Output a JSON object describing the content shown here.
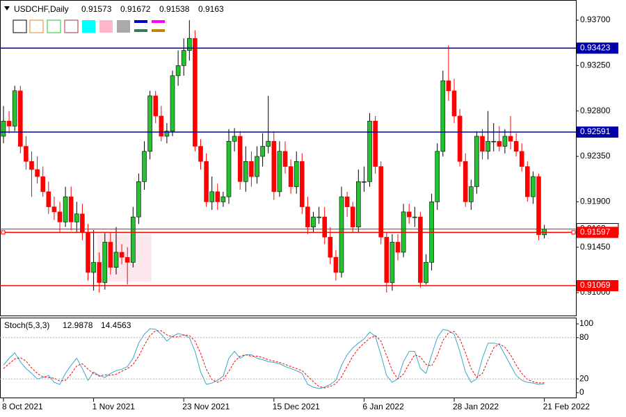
{
  "chart_data": {
    "type": "candlestick",
    "symbol": "USDCHF,Daily",
    "up_color": "#22c32e",
    "down_color": "#ff0000",
    "categories": [
      "8 Oct 2021",
      null,
      null,
      null,
      null,
      null,
      null,
      null,
      null,
      null,
      null,
      null,
      null,
      null,
      null,
      null,
      "1 Nov 2021",
      null,
      null,
      null,
      null,
      null,
      null,
      null,
      null,
      null,
      null,
      null,
      null,
      null,
      null,
      null,
      "23 Nov 2021",
      null,
      null,
      null,
      null,
      null,
      null,
      null,
      null,
      null,
      null,
      null,
      null,
      null,
      null,
      null,
      "15 Dec 2021",
      null,
      null,
      null,
      null,
      null,
      null,
      null,
      null,
      null,
      null,
      null,
      null,
      null,
      null,
      null,
      "6 Jan 2022",
      null,
      null,
      null,
      null,
      null,
      null,
      null,
      null,
      null,
      null,
      null,
      null,
      null,
      null,
      null,
      "28 Jan 2022",
      null,
      null,
      null,
      null,
      null,
      null,
      null,
      null,
      null,
      null,
      null,
      null,
      null,
      null,
      null,
      "21 Feb 2022"
    ],
    "open": [
      0.9255,
      0.927,
      0.9265,
      0.93,
      0.9245,
      0.923,
      0.9222,
      0.9215,
      0.92,
      0.9185,
      0.918,
      0.917,
      0.9195,
      0.917,
      0.9178,
      0.916,
      0.912,
      0.913,
      0.911,
      0.915,
      0.9125,
      0.914,
      0.9135,
      0.913,
      0.9175,
      0.921,
      0.924,
      0.9295,
      0.9275,
      0.9255,
      0.926,
      0.9315,
      0.9325,
      0.934,
      0.9352,
      0.9245,
      0.923,
      0.919,
      0.92,
      0.919,
      0.9195,
      0.925,
      0.9255,
      0.921,
      0.923,
      0.9215,
      0.9235,
      0.9245,
      0.925,
      0.92,
      0.924,
      0.9225,
      0.9205,
      0.923,
      0.9185,
      0.9165,
      0.9175,
      0.9175,
      0.9155,
      0.9135,
      0.912,
      0.9195,
      0.9185,
      0.9165,
      0.921,
      0.921,
      0.927,
      0.9225,
      0.9155,
      0.911,
      0.915,
      0.914,
      0.918,
      0.9175,
      0.9175,
      0.911,
      0.913,
      0.919,
      0.924,
      0.931,
      0.93,
      0.9275,
      0.923,
      0.919,
      0.9205,
      0.9255,
      0.924,
      0.925,
      0.925,
      0.9245,
      0.9255,
      0.925,
      0.924,
      0.9225,
      0.9195,
      0.9215,
      0.91573
    ],
    "high": [
      0.9285,
      0.928,
      0.9305,
      0.9305,
      0.9255,
      0.924,
      0.9235,
      0.9225,
      0.921,
      0.9195,
      0.919,
      0.9205,
      0.9205,
      0.919,
      0.9188,
      0.9168,
      0.9162,
      0.914,
      0.916,
      0.916,
      0.9165,
      0.9148,
      0.9145,
      0.9185,
      0.9218,
      0.925,
      0.93,
      0.93,
      0.9285,
      0.9268,
      0.932,
      0.934,
      0.9352,
      0.937,
      0.936,
      0.9252,
      0.9238,
      0.9215,
      0.9208,
      0.92,
      0.9262,
      0.9263,
      0.926,
      0.9245,
      0.924,
      0.9245,
      0.9258,
      0.9295,
      0.926,
      0.925,
      0.925,
      0.9232,
      0.924,
      0.9238,
      0.9195,
      0.918,
      0.9185,
      0.9185,
      0.9165,
      0.9142,
      0.9205,
      0.92,
      0.919,
      0.9222,
      0.9225,
      0.9278,
      0.9275,
      0.923,
      0.916,
      0.9158,
      0.9158,
      0.9188,
      0.9188,
      0.9185,
      0.918,
      0.9138,
      0.9198,
      0.9248,
      0.932,
      0.9345,
      0.9312,
      0.9282,
      0.9238,
      0.9212,
      0.926,
      0.9262,
      0.928,
      0.9268,
      0.9265,
      0.9262,
      0.9275,
      0.9258,
      0.9248,
      0.923,
      0.922,
      0.9218,
      0.91672
    ],
    "low": [
      0.9248,
      0.9258,
      0.926,
      0.9238,
      0.9222,
      0.9195,
      0.9208,
      0.9195,
      0.9178,
      0.9172,
      0.916,
      0.9165,
      0.9162,
      0.916,
      0.9152,
      0.9112,
      0.9102,
      0.91,
      0.9103,
      0.9118,
      0.9118,
      0.9128,
      0.9108,
      0.9125,
      0.9168,
      0.9202,
      0.9232,
      0.9268,
      0.925,
      0.9248,
      0.9255,
      0.9305,
      0.9315,
      0.933,
      0.924,
      0.9222,
      0.9185,
      0.9182,
      0.9182,
      0.9185,
      0.9188,
      0.924,
      0.9202,
      0.92,
      0.9205,
      0.9208,
      0.9225,
      0.9238,
      0.9192,
      0.9195,
      0.9218,
      0.9198,
      0.9198,
      0.9178,
      0.9158,
      0.916,
      0.9168,
      0.9148,
      0.9128,
      0.9112,
      0.9115,
      0.9175,
      0.916,
      0.916,
      0.92,
      0.9205,
      0.9218,
      0.9148,
      0.91,
      0.9102,
      0.9132,
      0.9135,
      0.9168,
      0.9165,
      0.9105,
      0.9108,
      0.9122,
      0.9182,
      0.9235,
      0.929,
      0.9268,
      0.9225,
      0.9185,
      0.9182,
      0.9198,
      0.9232,
      0.9232,
      0.924,
      0.924,
      0.9238,
      0.9242,
      0.9235,
      0.922,
      0.919,
      0.9188,
      0.9152,
      0.91538
    ],
    "close": [
      0.927,
      0.9265,
      0.93,
      0.9245,
      0.923,
      0.9222,
      0.9215,
      0.92,
      0.9185,
      0.918,
      0.917,
      0.9195,
      0.917,
      0.9178,
      0.916,
      0.912,
      0.913,
      0.911,
      0.915,
      0.9125,
      0.914,
      0.9135,
      0.913,
      0.9175,
      0.921,
      0.924,
      0.9295,
      0.9275,
      0.9255,
      0.926,
      0.9315,
      0.9325,
      0.934,
      0.9352,
      0.9245,
      0.923,
      0.919,
      0.92,
      0.919,
      0.9195,
      0.925,
      0.9255,
      0.921,
      0.923,
      0.9215,
      0.9235,
      0.9245,
      0.925,
      0.92,
      0.924,
      0.9225,
      0.9205,
      0.923,
      0.9185,
      0.9165,
      0.9175,
      0.9175,
      0.9155,
      0.9135,
      0.912,
      0.9195,
      0.9185,
      0.9165,
      0.921,
      0.921,
      0.927,
      0.9225,
      0.9155,
      0.911,
      0.915,
      0.914,
      0.918,
      0.9175,
      0.9175,
      0.911,
      0.913,
      0.919,
      0.924,
      0.931,
      0.93,
      0.9275,
      0.923,
      0.919,
      0.9205,
      0.9255,
      0.924,
      0.925,
      0.925,
      0.9245,
      0.9255,
      0.925,
      0.924,
      0.9225,
      0.9195,
      0.9215,
      0.91573,
      0.9163
    ],
    "ylim": [
      0.90766,
      0.939
    ],
    "yticks": [
      {
        "value": 0.937,
        "label": "0.93700"
      },
      {
        "value": 0.9325,
        "label": "0.93250"
      },
      {
        "value": 0.928,
        "label": "0.92800"
      },
      {
        "value": 0.9235,
        "label": "0.92350"
      },
      {
        "value": 0.919,
        "label": "0.91900"
      },
      {
        "value": 0.9145,
        "label": "0.91450"
      },
      {
        "value": 0.91,
        "label": "0.91000"
      }
    ],
    "levels": [
      {
        "value": 0.93423,
        "color": "#0000aa"
      },
      {
        "value": 0.92591,
        "color": "#0000aa"
      },
      {
        "value": 0.91597,
        "color": "#ff0000"
      },
      {
        "value": 0.91069,
        "color": "#ff0000"
      }
    ],
    "indicator": {
      "type": "line",
      "title": "Stoch(5,3,3)",
      "ylim": [
        -8.1,
        109.1
      ],
      "yticks": [
        100,
        80,
        20,
        0
      ],
      "grid_levels": [
        80,
        20
      ],
      "series": [
        {
          "color": "#3aa6c8",
          "dashed": false,
          "values": [
            40,
            50,
            58,
            45,
            35,
            28,
            20,
            22,
            25,
            15,
            12,
            28,
            40,
            50,
            35,
            18,
            30,
            25,
            22,
            28,
            32,
            34,
            38,
            50,
            72,
            85,
            93,
            92,
            85,
            75,
            82,
            86,
            84,
            80,
            60,
            30,
            12,
            14,
            18,
            24,
            50,
            60,
            50,
            55,
            55,
            50,
            48,
            45,
            44,
            42,
            38,
            35,
            32,
            28,
            12,
            8,
            6,
            8,
            12,
            18,
            40,
            55,
            65,
            72,
            78,
            88,
            82,
            55,
            25,
            15,
            20,
            45,
            60,
            60,
            35,
            28,
            55,
            80,
            92,
            90,
            85,
            60,
            30,
            15,
            20,
            50,
            72,
            72,
            70,
            55,
            40,
            25,
            18,
            15,
            14,
            12,
            12.9878
          ]
        },
        {
          "color": "#ff0000",
          "dashed": true,
          "values": [
            35,
            42,
            49,
            51,
            46,
            36,
            28,
            23,
            22,
            21,
            17,
            18,
            27,
            39,
            42,
            34,
            28,
            24,
            26,
            25,
            27,
            31,
            35,
            41,
            53,
            69,
            83,
            90,
            90,
            84,
            81,
            81,
            84,
            83,
            75,
            57,
            34,
            19,
            15,
            19,
            31,
            45,
            53,
            55,
            53,
            53,
            51,
            48,
            46,
            44,
            41,
            38,
            35,
            32,
            24,
            16,
            9,
            7,
            9,
            13,
            23,
            38,
            53,
            64,
            72,
            79,
            83,
            75,
            54,
            32,
            20,
            27,
            42,
            55,
            52,
            41,
            39,
            54,
            76,
            87,
            89,
            78,
            58,
            35,
            22,
            28,
            47,
            65,
            71,
            66,
            55,
            40,
            28,
            19,
            16,
            14,
            14.4563
          ]
        }
      ]
    }
  }
}
